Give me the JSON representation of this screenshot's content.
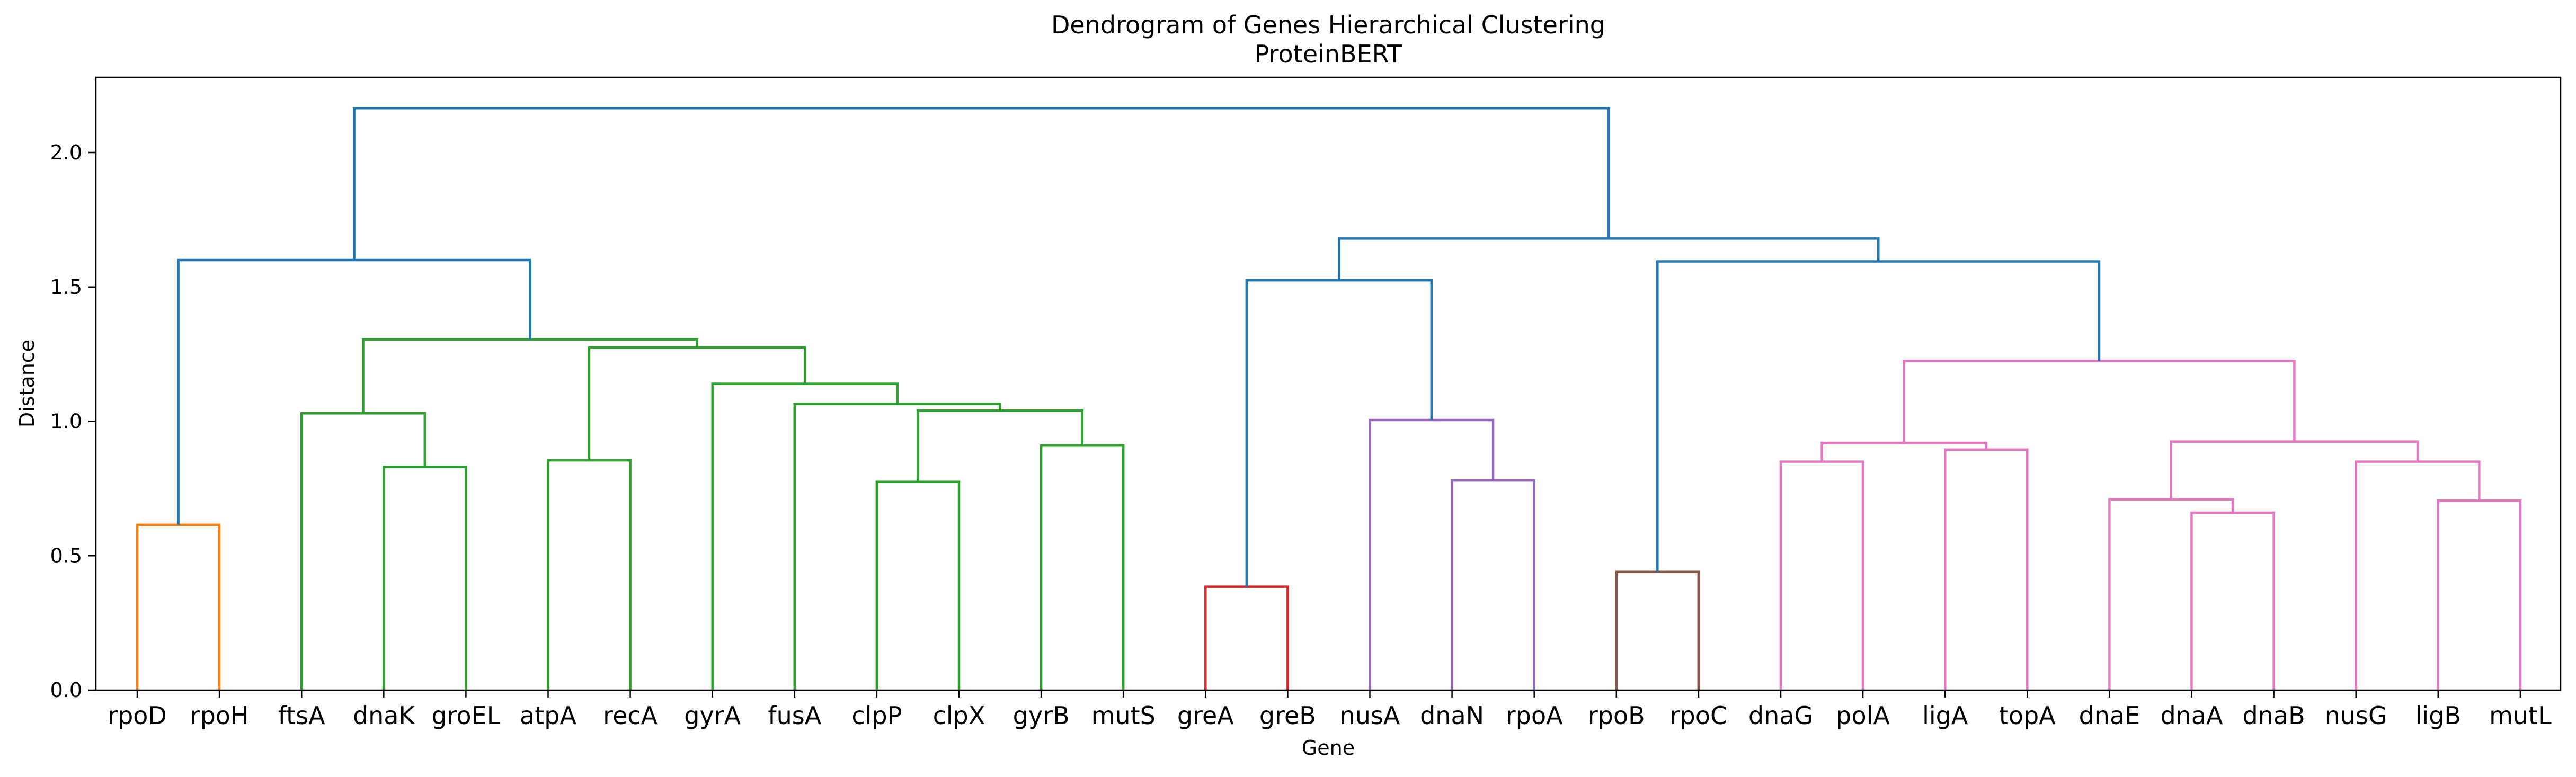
{
  "chart_data": {
    "type": "dendrogram",
    "title": "Dendrogram of Genes Hierarchical Clustering",
    "subtitle": "ProteinBERT",
    "xlabel": "Gene",
    "ylabel": "Distance",
    "ylim": [
      0,
      2.28
    ],
    "yticks": [
      0.0,
      0.5,
      1.0,
      1.5,
      2.0
    ],
    "ytick_labels": [
      "0.0",
      "0.5",
      "1.0",
      "1.5",
      "2.0"
    ],
    "grid": false,
    "leaves": [
      "rpoD",
      "rpoH",
      "ftsA",
      "dnaK",
      "groEL",
      "atpA",
      "recA",
      "gyrA",
      "fusA",
      "clpP",
      "clpX",
      "gyrB",
      "mutS",
      "greA",
      "greB",
      "nusA",
      "dnaN",
      "rpoA",
      "rpoB",
      "rpoC",
      "dnaG",
      "polA",
      "ligA",
      "topA",
      "dnaE",
      "dnaA",
      "dnaB",
      "nusG",
      "ligB",
      "mutL"
    ],
    "colors": {
      "C0": "#1f77b4",
      "C1": "#ff7f0e",
      "C2": "#2ca02c",
      "C3": "#d62728",
      "C4": "#9467bd",
      "C5": "#8c564b",
      "C6": "#e377c2"
    },
    "merges": [
      {
        "id": "m1",
        "left": "rpoD",
        "right": "rpoH",
        "height": 0.615,
        "color": "C1"
      },
      {
        "id": "m2",
        "left": "dnaK",
        "right": "groEL",
        "height": 0.83,
        "color": "C2"
      },
      {
        "id": "m3",
        "left": "ftsA",
        "right": "m2",
        "height": 1.03,
        "color": "C2"
      },
      {
        "id": "m4",
        "left": "atpA",
        "right": "recA",
        "height": 0.855,
        "color": "C2"
      },
      {
        "id": "m5",
        "left": "clpP",
        "right": "clpX",
        "height": 0.775,
        "color": "C2"
      },
      {
        "id": "m6",
        "left": "gyrB",
        "right": "mutS",
        "height": 0.91,
        "color": "C2"
      },
      {
        "id": "m7",
        "left": "m5",
        "right": "m6",
        "height": 1.04,
        "color": "C2"
      },
      {
        "id": "m8",
        "left": "fusA",
        "right": "m7",
        "height": 1.065,
        "color": "C2"
      },
      {
        "id": "m9",
        "left": "gyrA",
        "right": "m8",
        "height": 1.14,
        "color": "C2"
      },
      {
        "id": "m10",
        "left": "m4",
        "right": "m9",
        "height": 1.275,
        "color": "C2"
      },
      {
        "id": "m11",
        "left": "m3",
        "right": "m10",
        "height": 1.305,
        "color": "C2"
      },
      {
        "id": "m12",
        "left": "m1",
        "right": "m11",
        "height": 1.6,
        "color": "C0"
      },
      {
        "id": "m13",
        "left": "greA",
        "right": "greB",
        "height": 0.385,
        "color": "C3"
      },
      {
        "id": "m14",
        "left": "dnaN",
        "right": "rpoA",
        "height": 0.78,
        "color": "C4"
      },
      {
        "id": "m15",
        "left": "nusA",
        "right": "m14",
        "height": 1.005,
        "color": "C4"
      },
      {
        "id": "m16",
        "left": "m13",
        "right": "m15",
        "height": 1.525,
        "color": "C0"
      },
      {
        "id": "m17",
        "left": "rpoB",
        "right": "rpoC",
        "height": 0.44,
        "color": "C5"
      },
      {
        "id": "m18",
        "left": "dnaG",
        "right": "polA",
        "height": 0.85,
        "color": "C6"
      },
      {
        "id": "m19",
        "left": "ligA",
        "right": "topA",
        "height": 0.895,
        "color": "C6"
      },
      {
        "id": "m20",
        "left": "m18",
        "right": "m19",
        "height": 0.92,
        "color": "C6"
      },
      {
        "id": "m21",
        "left": "dnaA",
        "right": "dnaB",
        "height": 0.66,
        "color": "C6"
      },
      {
        "id": "m22",
        "left": "dnaE",
        "right": "m21",
        "height": 0.71,
        "color": "C6"
      },
      {
        "id": "m23",
        "left": "ligB",
        "right": "mutL",
        "height": 0.705,
        "color": "C6"
      },
      {
        "id": "m24",
        "left": "nusG",
        "right": "m23",
        "height": 0.85,
        "color": "C6"
      },
      {
        "id": "m25",
        "left": "m22",
        "right": "m24",
        "height": 0.925,
        "color": "C6"
      },
      {
        "id": "m26",
        "left": "m20",
        "right": "m25",
        "height": 1.225,
        "color": "C6"
      },
      {
        "id": "m27",
        "left": "m17",
        "right": "m26",
        "height": 1.595,
        "color": "C0"
      },
      {
        "id": "m28",
        "left": "m16",
        "right": "m27",
        "height": 1.68,
        "color": "C0"
      },
      {
        "id": "m29",
        "left": "m12",
        "right": "m28",
        "height": 2.165,
        "color": "C0"
      }
    ]
  }
}
